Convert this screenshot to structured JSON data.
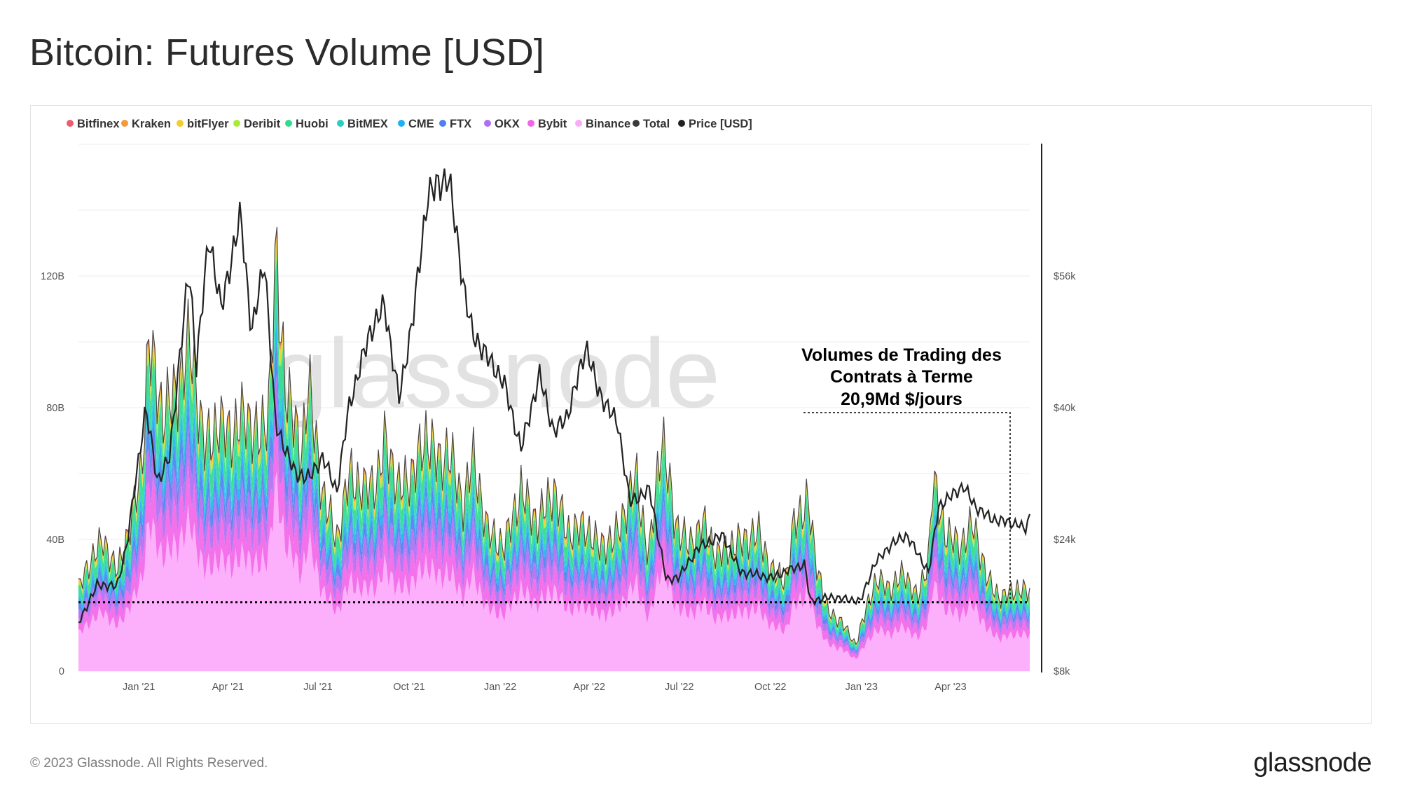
{
  "title": "Bitcoin: Futures Volume [USD]",
  "footer": {
    "copyright": "© 2023 Glassnode. All Rights Reserved.",
    "logo": "glassnode"
  },
  "chart_data": {
    "type": "area",
    "title": "Bitcoin: Futures Volume [USD]",
    "watermark": "glassnode",
    "legend_position": "top-left",
    "legend": [
      {
        "name": "Bitfinex",
        "color": "#f15a6b"
      },
      {
        "name": "Kraken",
        "color": "#f59a3c"
      },
      {
        "name": "bitFlyer",
        "color": "#f5cc2a"
      },
      {
        "name": "Deribit",
        "color": "#a8ec3a"
      },
      {
        "name": "Huobi",
        "color": "#2edc8c"
      },
      {
        "name": "BitMEX",
        "color": "#24cfc4"
      },
      {
        "name": "CME",
        "color": "#1fb2f0"
      },
      {
        "name": "FTX",
        "color": "#4f7ff0"
      },
      {
        "name": "OKX",
        "color": "#b06ef2"
      },
      {
        "name": "Bybit",
        "color": "#f265e8"
      },
      {
        "name": "Binance",
        "color": "#fca8fb"
      },
      {
        "name": "Total",
        "color": "#3a3a3a"
      },
      {
        "name": "Price [USD]",
        "color": "#222222"
      }
    ],
    "x_range": [
      "2020-11-01",
      "2023-06-20"
    ],
    "x_ticks": [
      {
        "label": "Jan '21",
        "date": "2021-01-01"
      },
      {
        "label": "Apr '21",
        "date": "2021-04-01"
      },
      {
        "label": "Jul '21",
        "date": "2021-07-01"
      },
      {
        "label": "Oct '21",
        "date": "2021-10-01"
      },
      {
        "label": "Jan '22",
        "date": "2022-01-01"
      },
      {
        "label": "Apr '22",
        "date": "2022-04-01"
      },
      {
        "label": "Jul '22",
        "date": "2022-07-01"
      },
      {
        "label": "Oct '22",
        "date": "2022-10-01"
      },
      {
        "label": "Jan '23",
        "date": "2023-01-01"
      },
      {
        "label": "Apr '23",
        "date": "2023-04-01"
      }
    ],
    "y_left": {
      "range": [
        0,
        160
      ],
      "ticks": [
        {
          "label": "0",
          "value": 0
        },
        {
          "label": "40B",
          "value": 40
        },
        {
          "label": "80B",
          "value": 80
        },
        {
          "label": "120B",
          "value": 120
        }
      ]
    },
    "y_right": {
      "range": [
        8000,
        72000
      ],
      "ticks": [
        {
          "label": "$8k",
          "value": 8000
        },
        {
          "label": "$24k",
          "value": 24000
        },
        {
          "label": "$40k",
          "value": 40000
        },
        {
          "label": "$56k",
          "value": 56000
        }
      ]
    },
    "grid": true,
    "volume_total_billion": [
      [
        "2020-11-01",
        25
      ],
      [
        "2020-11-12",
        33
      ],
      [
        "2020-11-26",
        40
      ],
      [
        "2020-12-10",
        30
      ],
      [
        "2020-12-24",
        45
      ],
      [
        "2021-01-04",
        62
      ],
      [
        "2021-01-11",
        100
      ],
      [
        "2021-01-25",
        78
      ],
      [
        "2021-02-08",
        85
      ],
      [
        "2021-02-22",
        100
      ],
      [
        "2021-03-08",
        68
      ],
      [
        "2021-03-22",
        75
      ],
      [
        "2021-04-05",
        72
      ],
      [
        "2021-04-19",
        78
      ],
      [
        "2021-05-03",
        70
      ],
      [
        "2021-05-12",
        80
      ],
      [
        "2021-05-19",
        125
      ],
      [
        "2021-05-28",
        90
      ],
      [
        "2021-06-14",
        65
      ],
      [
        "2021-06-21",
        88
      ],
      [
        "2021-07-05",
        55
      ],
      [
        "2021-07-20",
        40
      ],
      [
        "2021-08-02",
        60
      ],
      [
        "2021-08-16",
        55
      ],
      [
        "2021-08-30",
        58
      ],
      [
        "2021-09-07",
        70
      ],
      [
        "2021-09-21",
        55
      ],
      [
        "2021-10-04",
        60
      ],
      [
        "2021-10-20",
        72
      ],
      [
        "2021-11-01",
        62
      ],
      [
        "2021-11-10",
        68
      ],
      [
        "2021-11-24",
        50
      ],
      [
        "2021-12-04",
        65
      ],
      [
        "2021-12-20",
        42
      ],
      [
        "2022-01-05",
        38
      ],
      [
        "2022-01-22",
        55
      ],
      [
        "2022-02-07",
        45
      ],
      [
        "2022-02-24",
        55
      ],
      [
        "2022-03-10",
        42
      ],
      [
        "2022-03-28",
        44
      ],
      [
        "2022-04-11",
        38
      ],
      [
        "2022-04-26",
        40
      ],
      [
        "2022-05-09",
        50
      ],
      [
        "2022-05-18",
        60
      ],
      [
        "2022-05-31",
        34
      ],
      [
        "2022-06-13",
        72
      ],
      [
        "2022-06-27",
        45
      ],
      [
        "2022-07-11",
        38
      ],
      [
        "2022-07-25",
        45
      ],
      [
        "2022-08-08",
        35
      ],
      [
        "2022-08-22",
        38
      ],
      [
        "2022-09-05",
        40
      ],
      [
        "2022-09-19",
        42
      ],
      [
        "2022-10-03",
        30
      ],
      [
        "2022-10-17",
        28
      ],
      [
        "2022-10-25",
        45
      ],
      [
        "2022-11-08",
        52
      ],
      [
        "2022-11-15",
        35
      ],
      [
        "2022-11-28",
        18
      ],
      [
        "2022-12-12",
        15
      ],
      [
        "2022-12-26",
        8
      ],
      [
        "2023-01-09",
        22
      ],
      [
        "2023-01-16",
        28
      ],
      [
        "2023-01-30",
        25
      ],
      [
        "2023-02-13",
        30
      ],
      [
        "2023-02-27",
        22
      ],
      [
        "2023-03-10",
        35
      ],
      [
        "2023-03-14",
        58
      ],
      [
        "2023-03-27",
        42
      ],
      [
        "2023-04-11",
        38
      ],
      [
        "2023-04-24",
        45
      ],
      [
        "2023-05-08",
        28
      ],
      [
        "2023-05-22",
        22
      ],
      [
        "2023-06-05",
        25
      ],
      [
        "2023-06-20",
        24
      ]
    ],
    "exchange_share": [
      {
        "name": "Binance",
        "share": 0.45
      },
      {
        "name": "Bybit",
        "share": 0.12
      },
      {
        "name": "OKX",
        "share": 0.1
      },
      {
        "name": "FTX",
        "share": 0.07
      },
      {
        "name": "CME",
        "share": 0.05
      },
      {
        "name": "BitMEX",
        "share": 0.04
      },
      {
        "name": "Huobi",
        "share": 0.1
      },
      {
        "name": "Deribit",
        "share": 0.02
      },
      {
        "name": "bitFlyer",
        "share": 0.03
      },
      {
        "name": "Kraken",
        "share": 0.01
      },
      {
        "name": "Bitfinex",
        "share": 0.01
      }
    ],
    "price_usd": [
      [
        "2020-11-01",
        13800
      ],
      [
        "2020-11-20",
        18500
      ],
      [
        "2020-12-10",
        18300
      ],
      [
        "2020-12-20",
        23500
      ],
      [
        "2021-01-08",
        40000
      ],
      [
        "2021-01-20",
        31000
      ],
      [
        "2021-02-01",
        34000
      ],
      [
        "2021-02-12",
        47000
      ],
      [
        "2021-02-21",
        57000
      ],
      [
        "2021-02-28",
        45000
      ],
      [
        "2021-03-13",
        61000
      ],
      [
        "2021-03-25",
        52000
      ],
      [
        "2021-04-14",
        63500
      ],
      [
        "2021-04-25",
        49000
      ],
      [
        "2021-05-08",
        58000
      ],
      [
        "2021-05-19",
        38000
      ],
      [
        "2021-06-08",
        32000
      ],
      [
        "2021-06-22",
        31500
      ],
      [
        "2021-07-06",
        34000
      ],
      [
        "2021-07-20",
        29800
      ],
      [
        "2021-08-01",
        40000
      ],
      [
        "2021-08-22",
        49000
      ],
      [
        "2021-09-06",
        52500
      ],
      [
        "2021-09-21",
        41000
      ],
      [
        "2021-10-05",
        51000
      ],
      [
        "2021-10-20",
        66000
      ],
      [
        "2021-11-10",
        68000
      ],
      [
        "2021-11-26",
        54000
      ],
      [
        "2021-12-04",
        49000
      ],
      [
        "2021-12-20",
        46000
      ],
      [
        "2022-01-05",
        43000
      ],
      [
        "2022-01-22",
        35000
      ],
      [
        "2022-02-10",
        44000
      ],
      [
        "2022-02-24",
        37000
      ],
      [
        "2022-03-10",
        39000
      ],
      [
        "2022-03-29",
        47500
      ],
      [
        "2022-04-10",
        42000
      ],
      [
        "2022-04-30",
        38000
      ],
      [
        "2022-05-12",
        28500
      ],
      [
        "2022-06-01",
        30000
      ],
      [
        "2022-06-18",
        19000
      ],
      [
        "2022-07-01",
        19500
      ],
      [
        "2022-07-20",
        23000
      ],
      [
        "2022-08-14",
        24500
      ],
      [
        "2022-09-01",
        20000
      ],
      [
        "2022-09-15",
        19800
      ],
      [
        "2022-10-01",
        19300
      ],
      [
        "2022-10-25",
        20500
      ],
      [
        "2022-11-05",
        21000
      ],
      [
        "2022-11-10",
        16500
      ],
      [
        "2022-12-01",
        17000
      ],
      [
        "2022-12-31",
        16500
      ],
      [
        "2023-01-14",
        21000
      ],
      [
        "2023-02-01",
        23500
      ],
      [
        "2023-02-16",
        24500
      ],
      [
        "2023-03-10",
        20000
      ],
      [
        "2023-03-20",
        28000
      ],
      [
        "2023-04-14",
        30500
      ],
      [
        "2023-04-26",
        28000
      ],
      [
        "2023-05-12",
        26500
      ],
      [
        "2023-06-10",
        25800
      ],
      [
        "2023-06-15",
        25000
      ],
      [
        "2023-06-20",
        26800
      ]
    ],
    "reference_line": {
      "value_billion": 20.9,
      "style": "dotted",
      "color": "#000000"
    },
    "annotation": {
      "lines": [
        "Volumes de Trading des",
        "Contrats à Terme",
        "20,9Md $/jours"
      ],
      "leader_style": "dashed"
    }
  }
}
